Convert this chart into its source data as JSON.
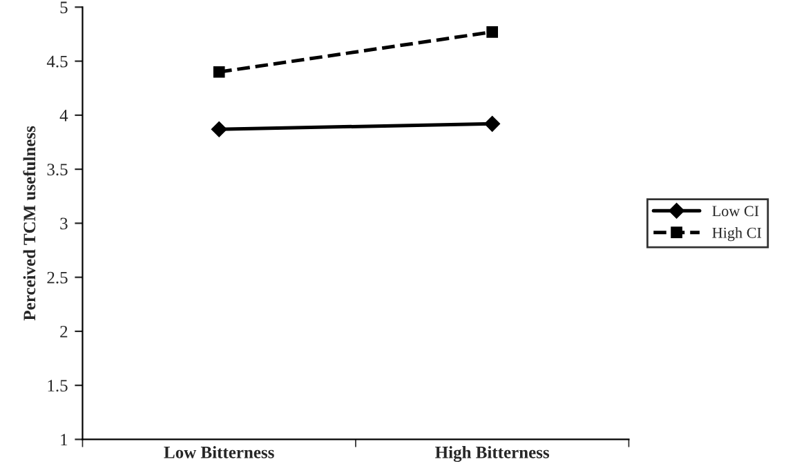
{
  "chart_data": {
    "type": "line",
    "ylabel": "Perceived TCM usefulness",
    "categories": [
      "Low Bitterness",
      "High Bitterness"
    ],
    "series": [
      {
        "name": "Low CI",
        "color": "#000000",
        "values": [
          3.87,
          3.92
        ],
        "marker": "diamond",
        "line_style": "solid"
      },
      {
        "name": "High CI",
        "color": "#000000",
        "values": [
          4.4,
          4.77
        ],
        "marker": "square",
        "line_style": "dashed"
      }
    ],
    "ylim": [
      1,
      5
    ],
    "yticks": [
      1,
      1.5,
      2,
      2.5,
      3,
      3.5,
      4,
      4.5,
      5
    ],
    "legend": "right"
  }
}
